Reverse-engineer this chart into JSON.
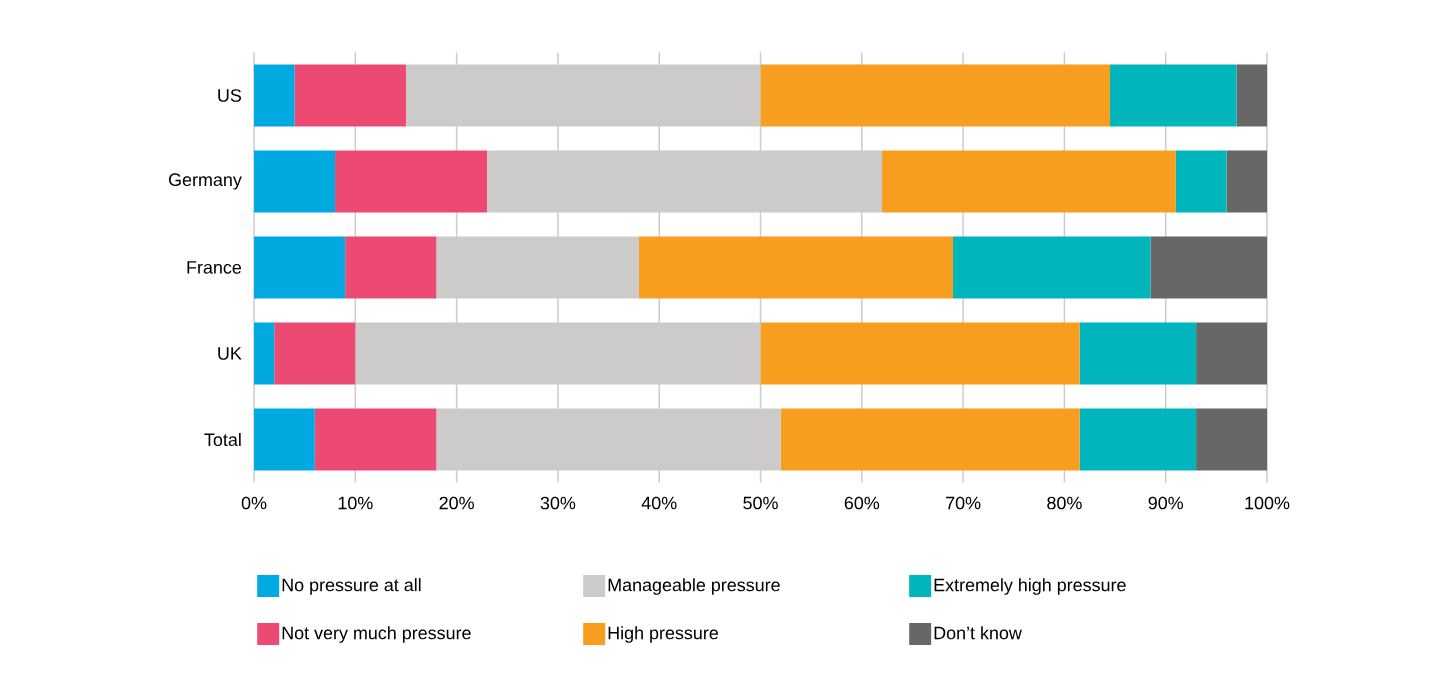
{
  "chart_data": {
    "type": "bar",
    "orientation": "horizontal",
    "stacked": true,
    "categories": [
      "US",
      "Germany",
      "France",
      "UK",
      "Total"
    ],
    "series": [
      {
        "name": "No pressure at all",
        "color": "#00a9e0",
        "values": [
          4,
          8,
          9,
          2,
          6
        ]
      },
      {
        "name": "Not very much pressure",
        "color": "#ec4a72",
        "values": [
          11,
          15,
          9,
          8,
          12
        ]
      },
      {
        "name": "Manageable pressure",
        "color": "#cccbc9",
        "values": [
          35,
          39,
          20,
          40,
          34
        ]
      },
      {
        "name": "High pressure",
        "color": "#f79e1f",
        "values": [
          34.5,
          29,
          31,
          31.5,
          29.5
        ]
      },
      {
        "name": "Extremely high pressure",
        "color": "#00b5bc",
        "values": [
          12.5,
          5,
          19.5,
          11.5,
          11.5
        ]
      },
      {
        "name": "Don’t know",
        "color": "#666766",
        "values": [
          3,
          4,
          11.5,
          7,
          7
        ]
      }
    ],
    "xlim": [
      0,
      100
    ],
    "xticks": [
      {
        "value": 0,
        "label": "0%"
      },
      {
        "value": 10,
        "label": "10%"
      },
      {
        "value": 20,
        "label": "20%"
      },
      {
        "value": 30,
        "label": "30%"
      },
      {
        "value": 40,
        "label": "40%"
      },
      {
        "value": 50,
        "label": "50%"
      },
      {
        "value": 60,
        "label": "60%"
      },
      {
        "value": 70,
        "label": "70%"
      },
      {
        "value": 80,
        "label": "80%"
      },
      {
        "value": 90,
        "label": "90%"
      },
      {
        "value": 100,
        "label": "100%"
      }
    ],
    "grid": "x",
    "legend": "bottom"
  }
}
